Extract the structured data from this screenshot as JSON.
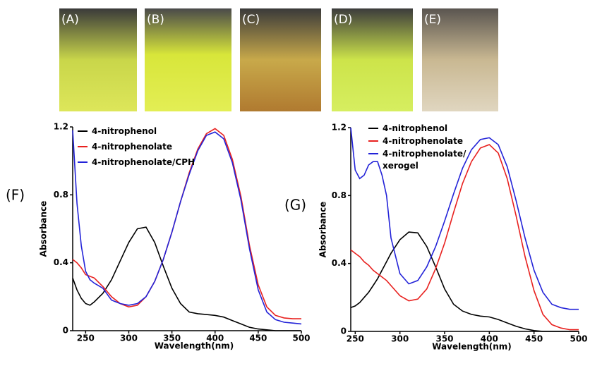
{
  "photos": {
    "labels": [
      "(A)",
      "(B)",
      "(C)",
      "(D)",
      "(E)"
    ]
  },
  "chart_data": [
    {
      "type": "line",
      "panel_label": "(F)",
      "xlabel": "Wavelength(nm)",
      "ylabel": "Absorbance",
      "x": [
        235,
        240,
        245,
        250,
        255,
        260,
        270,
        280,
        290,
        300,
        310,
        320,
        330,
        340,
        350,
        360,
        370,
        380,
        390,
        400,
        410,
        420,
        430,
        440,
        450,
        460,
        470,
        480,
        490,
        500
      ],
      "series": [
        {
          "name": "4-nitrophenol",
          "color": "#000000",
          "values": [
            0.31,
            0.24,
            0.19,
            0.16,
            0.15,
            0.17,
            0.22,
            0.3,
            0.41,
            0.52,
            0.6,
            0.61,
            0.52,
            0.38,
            0.25,
            0.16,
            0.11,
            0.1,
            0.095,
            0.09,
            0.08,
            0.06,
            0.04,
            0.02,
            0.01,
            0.005,
            0,
            0,
            0,
            0
          ]
        },
        {
          "name": "4-nitrophenolate",
          "color": "#e8211f",
          "values": [
            0.42,
            0.4,
            0.37,
            0.33,
            0.32,
            0.31,
            0.26,
            0.2,
            0.16,
            0.14,
            0.15,
            0.2,
            0.29,
            0.42,
            0.58,
            0.76,
            0.93,
            1.07,
            1.16,
            1.19,
            1.15,
            1.01,
            0.79,
            0.5,
            0.27,
            0.14,
            0.09,
            0.075,
            0.07,
            0.07
          ]
        },
        {
          "name": "4-nitrophenolate/CPH",
          "color": "#2323d8",
          "values": [
            1.18,
            0.75,
            0.5,
            0.35,
            0.3,
            0.28,
            0.25,
            0.18,
            0.16,
            0.15,
            0.16,
            0.2,
            0.29,
            0.42,
            0.58,
            0.76,
            0.92,
            1.06,
            1.15,
            1.17,
            1.13,
            0.99,
            0.77,
            0.48,
            0.24,
            0.11,
            0.065,
            0.05,
            0.045,
            0.04
          ]
        }
      ],
      "xlim": [
        235,
        500
      ],
      "xticks": [
        250,
        300,
        350,
        400,
        450,
        500
      ],
      "ylim": [
        0,
        1.2
      ],
      "yticks": [
        0,
        0.4,
        0.8,
        1.2
      ]
    },
    {
      "type": "line",
      "panel_label": "(G)",
      "xlabel": "Wavelength(nm)",
      "ylabel": "Absorbance",
      "x": [
        245,
        250,
        255,
        260,
        265,
        270,
        275,
        280,
        285,
        290,
        300,
        310,
        320,
        330,
        340,
        350,
        360,
        370,
        380,
        390,
        400,
        410,
        420,
        430,
        440,
        450,
        460,
        470,
        480,
        490,
        500
      ],
      "series": [
        {
          "name": "4-nitrophenol",
          "color": "#000000",
          "values": [
            0.14,
            0.15,
            0.17,
            0.2,
            0.23,
            0.27,
            0.31,
            0.36,
            0.41,
            0.46,
            0.54,
            0.585,
            0.58,
            0.5,
            0.38,
            0.25,
            0.16,
            0.12,
            0.1,
            0.09,
            0.085,
            0.07,
            0.05,
            0.03,
            0.015,
            0.005,
            0,
            0,
            0,
            0,
            0
          ]
        },
        {
          "name": "4-nitrophenolate",
          "color": "#e8211f",
          "values": [
            0.48,
            0.46,
            0.44,
            0.41,
            0.39,
            0.36,
            0.34,
            0.32,
            0.3,
            0.27,
            0.21,
            0.18,
            0.19,
            0.25,
            0.37,
            0.52,
            0.7,
            0.87,
            1.0,
            1.08,
            1.1,
            1.05,
            0.9,
            0.68,
            0.44,
            0.24,
            0.1,
            0.04,
            0.02,
            0.01,
            0.01
          ]
        },
        {
          "name": "4-nitrophenolate/xerogel",
          "color": "#2323d8",
          "values": [
            1.2,
            0.95,
            0.9,
            0.92,
            0.98,
            1.0,
            1.0,
            0.92,
            0.8,
            0.55,
            0.34,
            0.28,
            0.3,
            0.38,
            0.5,
            0.65,
            0.81,
            0.96,
            1.07,
            1.13,
            1.14,
            1.1,
            0.97,
            0.77,
            0.55,
            0.36,
            0.23,
            0.16,
            0.14,
            0.13,
            0.13
          ]
        }
      ],
      "xlim": [
        245,
        500
      ],
      "xticks": [
        250,
        300,
        350,
        400,
        450,
        500
      ],
      "ylim": [
        0,
        1.2
      ],
      "yticks": [
        0,
        0.4,
        0.8,
        1.2
      ]
    }
  ]
}
